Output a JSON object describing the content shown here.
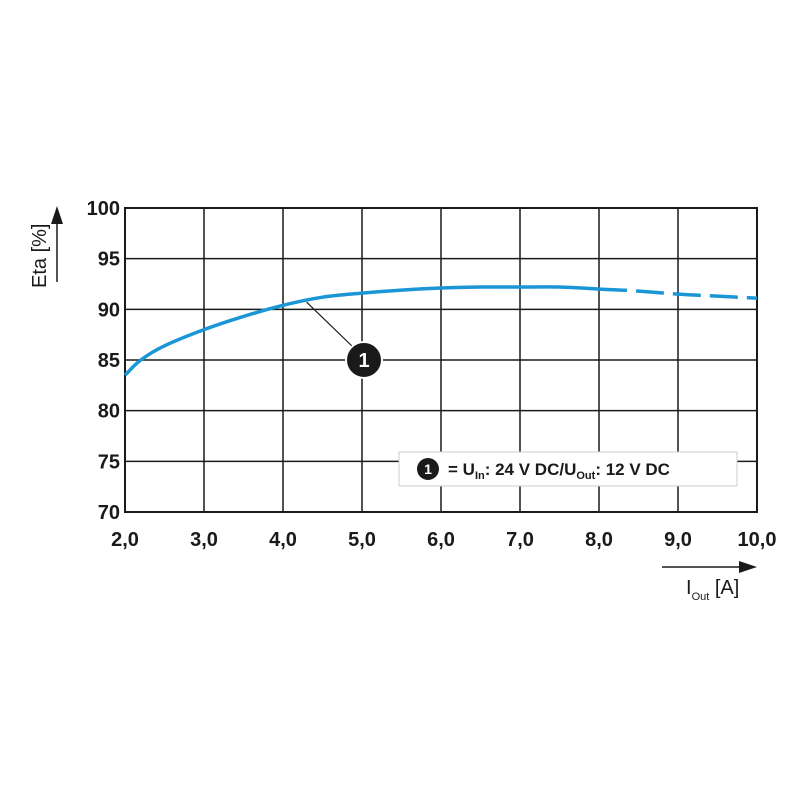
{
  "chart_data": {
    "type": "line",
    "title": "",
    "xlabel": {
      "main": "I",
      "sub": "Out",
      "unit": " [A]"
    },
    "ylabel": "Eta [%]",
    "xlim": [
      2,
      10
    ],
    "ylim": [
      70,
      100
    ],
    "x_ticks": [
      2,
      3,
      4,
      5,
      6,
      7,
      8,
      9,
      10
    ],
    "x_tick_labels": [
      "2,0",
      "3,0",
      "4,0",
      "5,0",
      "6,0",
      "7,0",
      "8,0",
      "9,0",
      "10,0"
    ],
    "y_ticks": [
      70,
      75,
      80,
      85,
      90,
      95,
      100
    ],
    "y_tick_labels": [
      "70",
      "75",
      "80",
      "85",
      "90",
      "95",
      "100"
    ],
    "grid": true,
    "line_color": "#1a96d6",
    "series": [
      {
        "marker": "1",
        "x": [
          2.0,
          2.2,
          2.5,
          3.0,
          3.5,
          4.0,
          4.5,
          5.0,
          5.5,
          6.0,
          6.5,
          7.0,
          7.5,
          8.0
        ],
        "y": [
          83.5,
          85.0,
          86.4,
          88.0,
          89.3,
          90.4,
          91.2,
          91.6,
          91.9,
          92.1,
          92.2,
          92.2,
          92.2,
          92.0
        ],
        "style": "solid"
      },
      {
        "marker": "1",
        "x": [
          8.0,
          8.5,
          9.0,
          9.5,
          10.0
        ],
        "y": [
          92.0,
          91.8,
          91.5,
          91.3,
          91.1
        ],
        "style": "dashed"
      }
    ],
    "annotation": {
      "label": "1",
      "points_to": {
        "x": 4.3,
        "y": 90.9
      }
    },
    "legend": {
      "placement": "bottom-right",
      "marker": "1",
      "eq": "= ",
      "u_in_main": "U",
      "u_in_sub": "In",
      "u_in_value": ": 24 V DC/",
      "u_out_main": "U",
      "u_out_sub": "Out",
      "u_out_value": ": 12 V DC"
    }
  }
}
